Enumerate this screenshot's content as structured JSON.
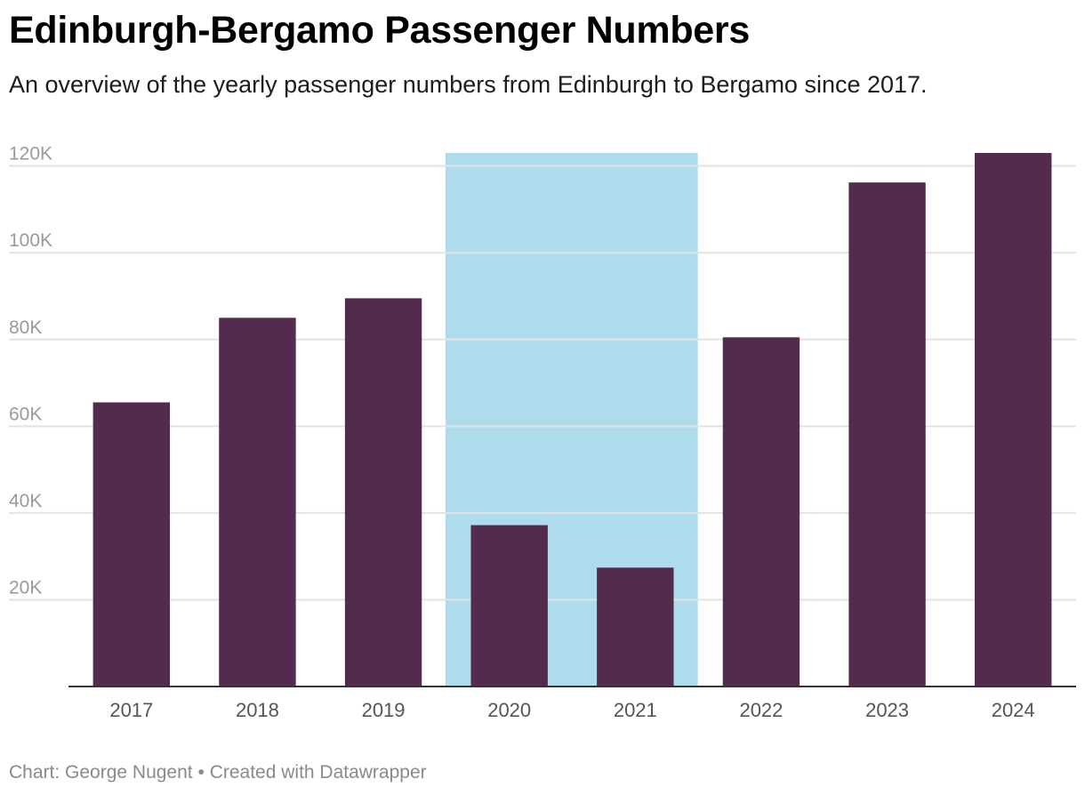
{
  "header": {
    "title": "Edinburgh-Bergamo Passenger Numbers",
    "subtitle": "An overview of the yearly passenger numbers from Edinburgh to Bergamo since 2017."
  },
  "footer": {
    "source_label": "Chart:",
    "author": "George Nugent",
    "separator": "•",
    "tool_text": "Created with Datawrapper"
  },
  "chart_data": {
    "type": "bar",
    "title": "Edinburgh-Bergamo Passenger Numbers",
    "xlabel": "",
    "ylabel": "",
    "categories": [
      "2017",
      "2018",
      "2019",
      "2020",
      "2021",
      "2022",
      "2023",
      "2024"
    ],
    "values": [
      65500,
      85000,
      89500,
      37200,
      27400,
      80500,
      116200,
      123000
    ],
    "ylim": [
      0,
      123000
    ],
    "yticks": [
      20000,
      40000,
      60000,
      80000,
      100000,
      120000
    ],
    "ytick_labels": [
      "20K",
      "40K",
      "60K",
      "80K",
      "100K",
      "120K"
    ],
    "grid": true,
    "highlight_range": {
      "from": "2020",
      "to": "2021",
      "color": "#aedcec"
    },
    "colors": {
      "bar": "#522b4d",
      "grid": "#e3e3e3",
      "baseline": "#333333"
    }
  }
}
